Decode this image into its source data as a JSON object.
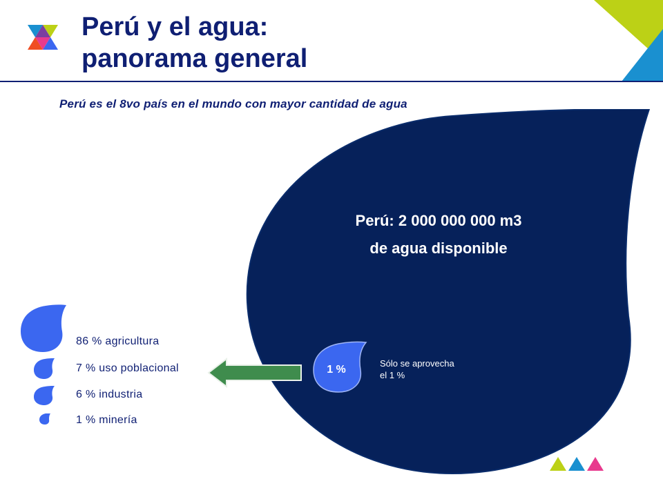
{
  "header": {
    "title_line1": "Perú y el agua:",
    "title_line2": "panorama general"
  },
  "subtitle": "Perú es el 8vo país en el mundo con mayor cantidad de agua",
  "main_drop": {
    "line1": "Perú: 2 000 000 000 m3",
    "line2": "de agua disponible"
  },
  "small_drop": {
    "label": "1 %",
    "note_line1": "Sólo se aprovecha",
    "note_line2": "el 1 %"
  },
  "uses": [
    {
      "label": "86 % agricultura"
    },
    {
      "label": "7 % uso poblacional"
    },
    {
      "label": "6 % industria"
    },
    {
      "label": "1 % minería"
    }
  ],
  "colors": {
    "navy": "#0f1f73",
    "drop_navy": "#06215a",
    "drop_blue": "#3b67f0",
    "arrow_green": "#3f8c4d",
    "lime": "#bcd116",
    "cyan": "#1a90d0",
    "magenta": "#e83a8e"
  }
}
